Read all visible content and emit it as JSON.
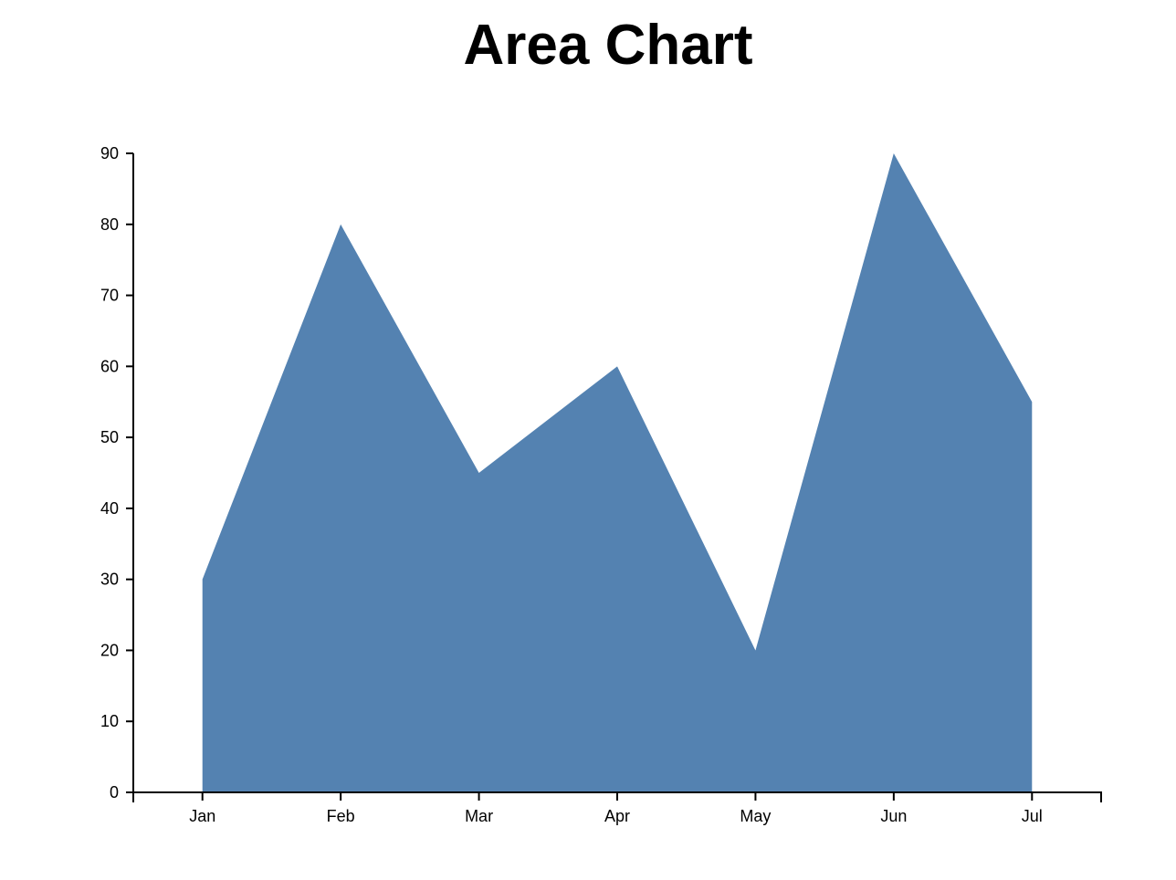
{
  "chart_data": {
    "type": "area",
    "title": "Area Chart",
    "xlabel": "",
    "ylabel": "",
    "categories": [
      "Jan",
      "Feb",
      "Mar",
      "Apr",
      "May",
      "Jun",
      "Jul"
    ],
    "series": [
      {
        "values": [
          30,
          80,
          45,
          60,
          20,
          90,
          55
        ],
        "color": "#5482b1"
      }
    ],
    "ylim": [
      0,
      90
    ],
    "yticks": [
      0,
      10,
      20,
      30,
      40,
      50,
      60,
      70,
      80,
      90
    ],
    "grid": false,
    "legend": "none"
  }
}
